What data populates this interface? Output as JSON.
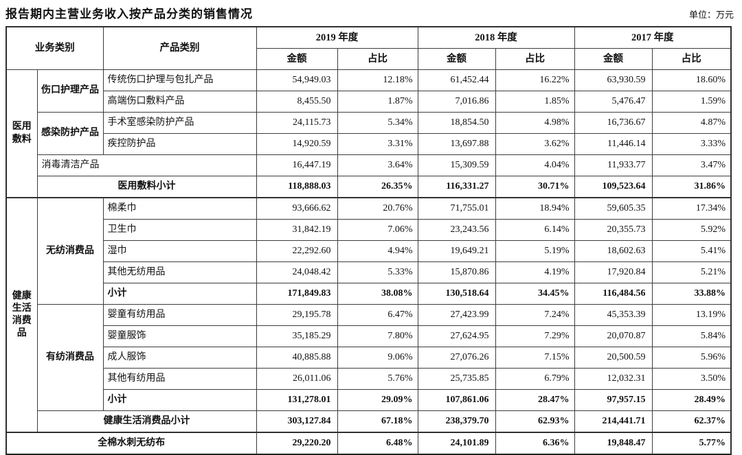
{
  "title": "报告期内主营业务收入按产品分类的销售情况",
  "unit_label": "单位：万元",
  "table": {
    "header": {
      "business_category": "业务类别",
      "product_category": "产品类别",
      "year_2019": "2019 年度",
      "year_2018": "2018 年度",
      "year_2017": "2017 年度",
      "amount": "金额",
      "ratio": "占比"
    },
    "body_rows": [
      {
        "cells": [
          {
            "t": "医用敷料",
            "rs": 6,
            "cls": "grp",
            "n": "group-label-medical-dressing"
          },
          {
            "t": "伤口护理产品",
            "rs": 2,
            "cls": "sub",
            "n": "subgroup-wound-care"
          },
          {
            "t": "传统伤口护理与包扎产品",
            "cls": "prod"
          },
          {
            "t": "54,949.03",
            "cls": "amt"
          },
          {
            "t": "12.18%",
            "cls": "pct"
          },
          {
            "t": "61,452.44",
            "cls": "amt"
          },
          {
            "t": "16.22%",
            "cls": "pct"
          },
          {
            "t": "63,930.59",
            "cls": "amt"
          },
          {
            "t": "18.60%",
            "cls": "pct"
          }
        ]
      },
      {
        "cells": [
          {
            "t": "高端伤口敷料产品",
            "cls": "prod"
          },
          {
            "t": "8,455.50",
            "cls": "amt"
          },
          {
            "t": "1.87%",
            "cls": "pct"
          },
          {
            "t": "7,016.86",
            "cls": "amt"
          },
          {
            "t": "1.85%",
            "cls": "pct"
          },
          {
            "t": "5,476.47",
            "cls": "amt"
          },
          {
            "t": "1.59%",
            "cls": "pct"
          }
        ]
      },
      {
        "cells": [
          {
            "t": "感染防护产品",
            "rs": 2,
            "cls": "sub",
            "n": "subgroup-infection-protection"
          },
          {
            "t": "手术室感染防护产品",
            "cls": "prod"
          },
          {
            "t": "24,115.73",
            "cls": "amt"
          },
          {
            "t": "5.34%",
            "cls": "pct"
          },
          {
            "t": "18,854.50",
            "cls": "amt"
          },
          {
            "t": "4.98%",
            "cls": "pct"
          },
          {
            "t": "16,736.67",
            "cls": "amt"
          },
          {
            "t": "4.87%",
            "cls": "pct"
          }
        ]
      },
      {
        "cells": [
          {
            "t": "疾控防护品",
            "cls": "prod"
          },
          {
            "t": "14,920.59",
            "cls": "amt"
          },
          {
            "t": "3.31%",
            "cls": "pct"
          },
          {
            "t": "13,697.88",
            "cls": "amt"
          },
          {
            "t": "3.62%",
            "cls": "pct"
          },
          {
            "t": "11,446.14",
            "cls": "amt"
          },
          {
            "t": "3.33%",
            "cls": "pct"
          }
        ]
      },
      {
        "cells": [
          {
            "t": "消毒清洁产品",
            "cs": 2,
            "cls": "prod",
            "n": "subgroup-disinfection-cleaning"
          },
          {
            "t": "16,447.19",
            "cls": "amt"
          },
          {
            "t": "3.64%",
            "cls": "pct"
          },
          {
            "t": "15,309.59",
            "cls": "amt"
          },
          {
            "t": "4.04%",
            "cls": "pct"
          },
          {
            "t": "11,933.77",
            "cls": "amt"
          },
          {
            "t": "3.47%",
            "cls": "pct"
          }
        ]
      },
      {
        "cls": "bold",
        "cells": [
          {
            "t": "医用敷料小计",
            "cs": 2,
            "cls": "ctr",
            "n": "subtotal-medical-dressing"
          },
          {
            "t": "118,888.03",
            "cls": "amt"
          },
          {
            "t": "26.35%",
            "cls": "pct"
          },
          {
            "t": "116,331.27",
            "cls": "amt"
          },
          {
            "t": "30.71%",
            "cls": "pct"
          },
          {
            "t": "109,523.64",
            "cls": "amt"
          },
          {
            "t": "31.86%",
            "cls": "pct"
          }
        ]
      },
      {
        "cls": "tsep",
        "cells": [
          {
            "t": "健康生活消费品",
            "rs": 11,
            "cls": "grp",
            "n": "group-label-healthy-life"
          },
          {
            "t": "无纺消费品",
            "rs": 5,
            "cls": "sub",
            "n": "subgroup-nonwoven"
          },
          {
            "t": "棉柔巾",
            "cls": "prod"
          },
          {
            "t": "93,666.62",
            "cls": "amt"
          },
          {
            "t": "20.76%",
            "cls": "pct"
          },
          {
            "t": "71,755.01",
            "cls": "amt"
          },
          {
            "t": "18.94%",
            "cls": "pct"
          },
          {
            "t": "59,605.35",
            "cls": "amt"
          },
          {
            "t": "17.34%",
            "cls": "pct"
          }
        ]
      },
      {
        "cells": [
          {
            "t": "卫生巾",
            "cls": "prod"
          },
          {
            "t": "31,842.19",
            "cls": "amt"
          },
          {
            "t": "7.06%",
            "cls": "pct"
          },
          {
            "t": "23,243.56",
            "cls": "amt"
          },
          {
            "t": "6.14%",
            "cls": "pct"
          },
          {
            "t": "20,355.73",
            "cls": "amt"
          },
          {
            "t": "5.92%",
            "cls": "pct"
          }
        ]
      },
      {
        "cells": [
          {
            "t": "湿巾",
            "cls": "prod"
          },
          {
            "t": "22,292.60",
            "cls": "amt"
          },
          {
            "t": "4.94%",
            "cls": "pct"
          },
          {
            "t": "19,649.21",
            "cls": "amt"
          },
          {
            "t": "5.19%",
            "cls": "pct"
          },
          {
            "t": "18,602.63",
            "cls": "amt"
          },
          {
            "t": "5.41%",
            "cls": "pct"
          }
        ]
      },
      {
        "cells": [
          {
            "t": "其他无纺用品",
            "cls": "prod"
          },
          {
            "t": "24,048.42",
            "cls": "amt"
          },
          {
            "t": "5.33%",
            "cls": "pct"
          },
          {
            "t": "15,870.86",
            "cls": "amt"
          },
          {
            "t": "4.19%",
            "cls": "pct"
          },
          {
            "t": "17,920.84",
            "cls": "amt"
          },
          {
            "t": "5.21%",
            "cls": "pct"
          }
        ]
      },
      {
        "cls": "bold",
        "cells": [
          {
            "t": "小计",
            "cls": "prod",
            "n": "subtotal-nonwoven"
          },
          {
            "t": "171,849.83",
            "cls": "amt"
          },
          {
            "t": "38.08%",
            "cls": "pct"
          },
          {
            "t": "130,518.64",
            "cls": "amt"
          },
          {
            "t": "34.45%",
            "cls": "pct"
          },
          {
            "t": "116,484.56",
            "cls": "amt"
          },
          {
            "t": "33.88%",
            "cls": "pct"
          }
        ]
      },
      {
        "cells": [
          {
            "t": "有纺消费品",
            "rs": 5,
            "cls": "sub",
            "n": "subgroup-woven"
          },
          {
            "t": "婴童有纺用品",
            "cls": "prod"
          },
          {
            "t": "29,195.78",
            "cls": "amt"
          },
          {
            "t": "6.47%",
            "cls": "pct"
          },
          {
            "t": "27,423.99",
            "cls": "amt"
          },
          {
            "t": "7.24%",
            "cls": "pct"
          },
          {
            "t": "45,353.39",
            "cls": "amt"
          },
          {
            "t": "13.19%",
            "cls": "pct"
          }
        ]
      },
      {
        "cells": [
          {
            "t": "婴童服饰",
            "cls": "prod"
          },
          {
            "t": "35,185.29",
            "cls": "amt"
          },
          {
            "t": "7.80%",
            "cls": "pct"
          },
          {
            "t": "27,624.95",
            "cls": "amt"
          },
          {
            "t": "7.29%",
            "cls": "pct"
          },
          {
            "t": "20,070.87",
            "cls": "amt"
          },
          {
            "t": "5.84%",
            "cls": "pct"
          }
        ]
      },
      {
        "cells": [
          {
            "t": "成人服饰",
            "cls": "prod"
          },
          {
            "t": "40,885.88",
            "cls": "amt"
          },
          {
            "t": "9.06%",
            "cls": "pct"
          },
          {
            "t": "27,076.26",
            "cls": "amt"
          },
          {
            "t": "7.15%",
            "cls": "pct"
          },
          {
            "t": "20,500.59",
            "cls": "amt"
          },
          {
            "t": "5.96%",
            "cls": "pct"
          }
        ]
      },
      {
        "cells": [
          {
            "t": "其他有纺用品",
            "cls": "prod"
          },
          {
            "t": "26,011.06",
            "cls": "amt"
          },
          {
            "t": "5.76%",
            "cls": "pct"
          },
          {
            "t": "25,735.85",
            "cls": "amt"
          },
          {
            "t": "6.79%",
            "cls": "pct"
          },
          {
            "t": "12,032.31",
            "cls": "amt"
          },
          {
            "t": "3.50%",
            "cls": "pct"
          }
        ]
      },
      {
        "cls": "bold",
        "cells": [
          {
            "t": "小计",
            "cls": "prod",
            "n": "subtotal-woven"
          },
          {
            "t": "131,278.01",
            "cls": "amt"
          },
          {
            "t": "29.09%",
            "cls": "pct"
          },
          {
            "t": "107,861.06",
            "cls": "amt"
          },
          {
            "t": "28.47%",
            "cls": "pct"
          },
          {
            "t": "97,957.15",
            "cls": "amt"
          },
          {
            "t": "28.49%",
            "cls": "pct"
          }
        ]
      },
      {
        "cls": "bold",
        "cells": [
          {
            "t": "健康生活消费品小计",
            "cs": 2,
            "cls": "ctr",
            "n": "subtotal-healthy-life"
          },
          {
            "t": "303,127.84",
            "cls": "amt"
          },
          {
            "t": "67.18%",
            "cls": "pct"
          },
          {
            "t": "238,379.70",
            "cls": "amt"
          },
          {
            "t": "62.93%",
            "cls": "pct"
          },
          {
            "t": "214,441.71",
            "cls": "amt"
          },
          {
            "t": "62.37%",
            "cls": "pct"
          }
        ]
      },
      {
        "cls": "bold tsep",
        "cells": [
          {
            "t": "全棉水刺无纺布",
            "cs": 3,
            "cls": "ctr",
            "n": "row-label-spunlace-nonwoven"
          },
          {
            "t": "29,220.20",
            "cls": "amt"
          },
          {
            "t": "6.48%",
            "cls": "pct"
          },
          {
            "t": "24,101.89",
            "cls": "amt"
          },
          {
            "t": "6.36%",
            "cls": "pct"
          },
          {
            "t": "19,848.47",
            "cls": "amt"
          },
          {
            "t": "5.77%",
            "cls": "pct"
          }
        ]
      }
    ]
  }
}
